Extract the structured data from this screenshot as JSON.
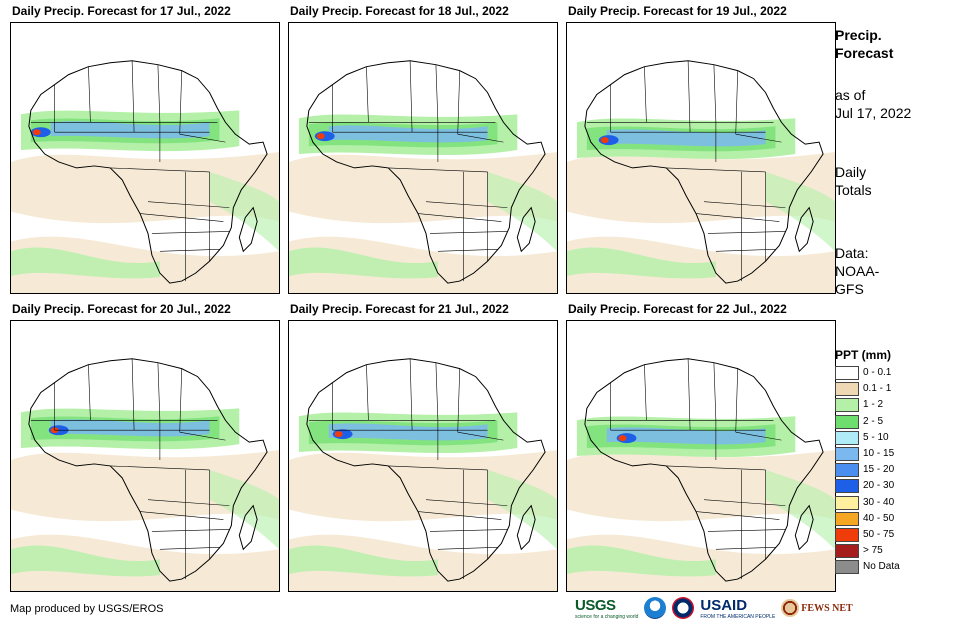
{
  "panels": [
    {
      "title": "Daily Precip. Forecast for 17 Jul., 2022",
      "day": "17 Jul."
    },
    {
      "title": "Daily Precip. Forecast for 18 Jul., 2022",
      "day": "18 Jul."
    },
    {
      "title": "Daily Precip. Forecast for 19 Jul., 2022",
      "day": "19 Jul."
    },
    {
      "title": "Daily Precip. Forecast for 20 Jul., 2022",
      "day": "20 Jul."
    },
    {
      "title": "Daily Precip. Forecast for 21 Jul., 2022",
      "day": "21 Jul."
    },
    {
      "title": "Daily Precip. Forecast for 22 Jul., 2022",
      "day": "22 Jul."
    }
  ],
  "side": {
    "heading_line1": "Precip.",
    "heading_line2": "Forecast",
    "asof_line1": "as of",
    "asof_line2": "Jul 17, 2022",
    "totals_line1": "Daily",
    "totals_line2": "Totals",
    "data_line1": "Data:",
    "data_line2": "NOAA-",
    "data_line3": "GFS"
  },
  "legend": {
    "title": "PPT (mm)",
    "items": [
      {
        "label": "0 - 0.1",
        "color": "#ffffff"
      },
      {
        "label": "0.1 - 1",
        "color": "#efd9b4"
      },
      {
        "label": "1 - 2",
        "color": "#b4f0a8"
      },
      {
        "label": "2 - 5",
        "color": "#6ede6e"
      },
      {
        "label": "5 - 10",
        "color": "#b0ecf8"
      },
      {
        "label": "10 - 15",
        "color": "#7cb8f0"
      },
      {
        "label": "15 - 20",
        "color": "#4a8ef0"
      },
      {
        "label": "20 - 30",
        "color": "#1e5fe8"
      },
      {
        "label": "30 - 40",
        "color": "#fff0a0"
      },
      {
        "label": "40 - 50",
        "color": "#f5a623"
      },
      {
        "label": "50 - 75",
        "color": "#f03c0a"
      },
      {
        "label": "> 75",
        "color": "#a41c1c"
      },
      {
        "label": "No Data",
        "color": "#8c8c8c"
      }
    ]
  },
  "credit": "Map produced by USGS/EROS",
  "logos": {
    "usgs": "USGS",
    "usgs_tagline": "science for a changing world",
    "usaid": "USAID",
    "usaid_tagline": "FROM THE AMERICAN PEOPLE",
    "fews": "FEWS NET"
  }
}
